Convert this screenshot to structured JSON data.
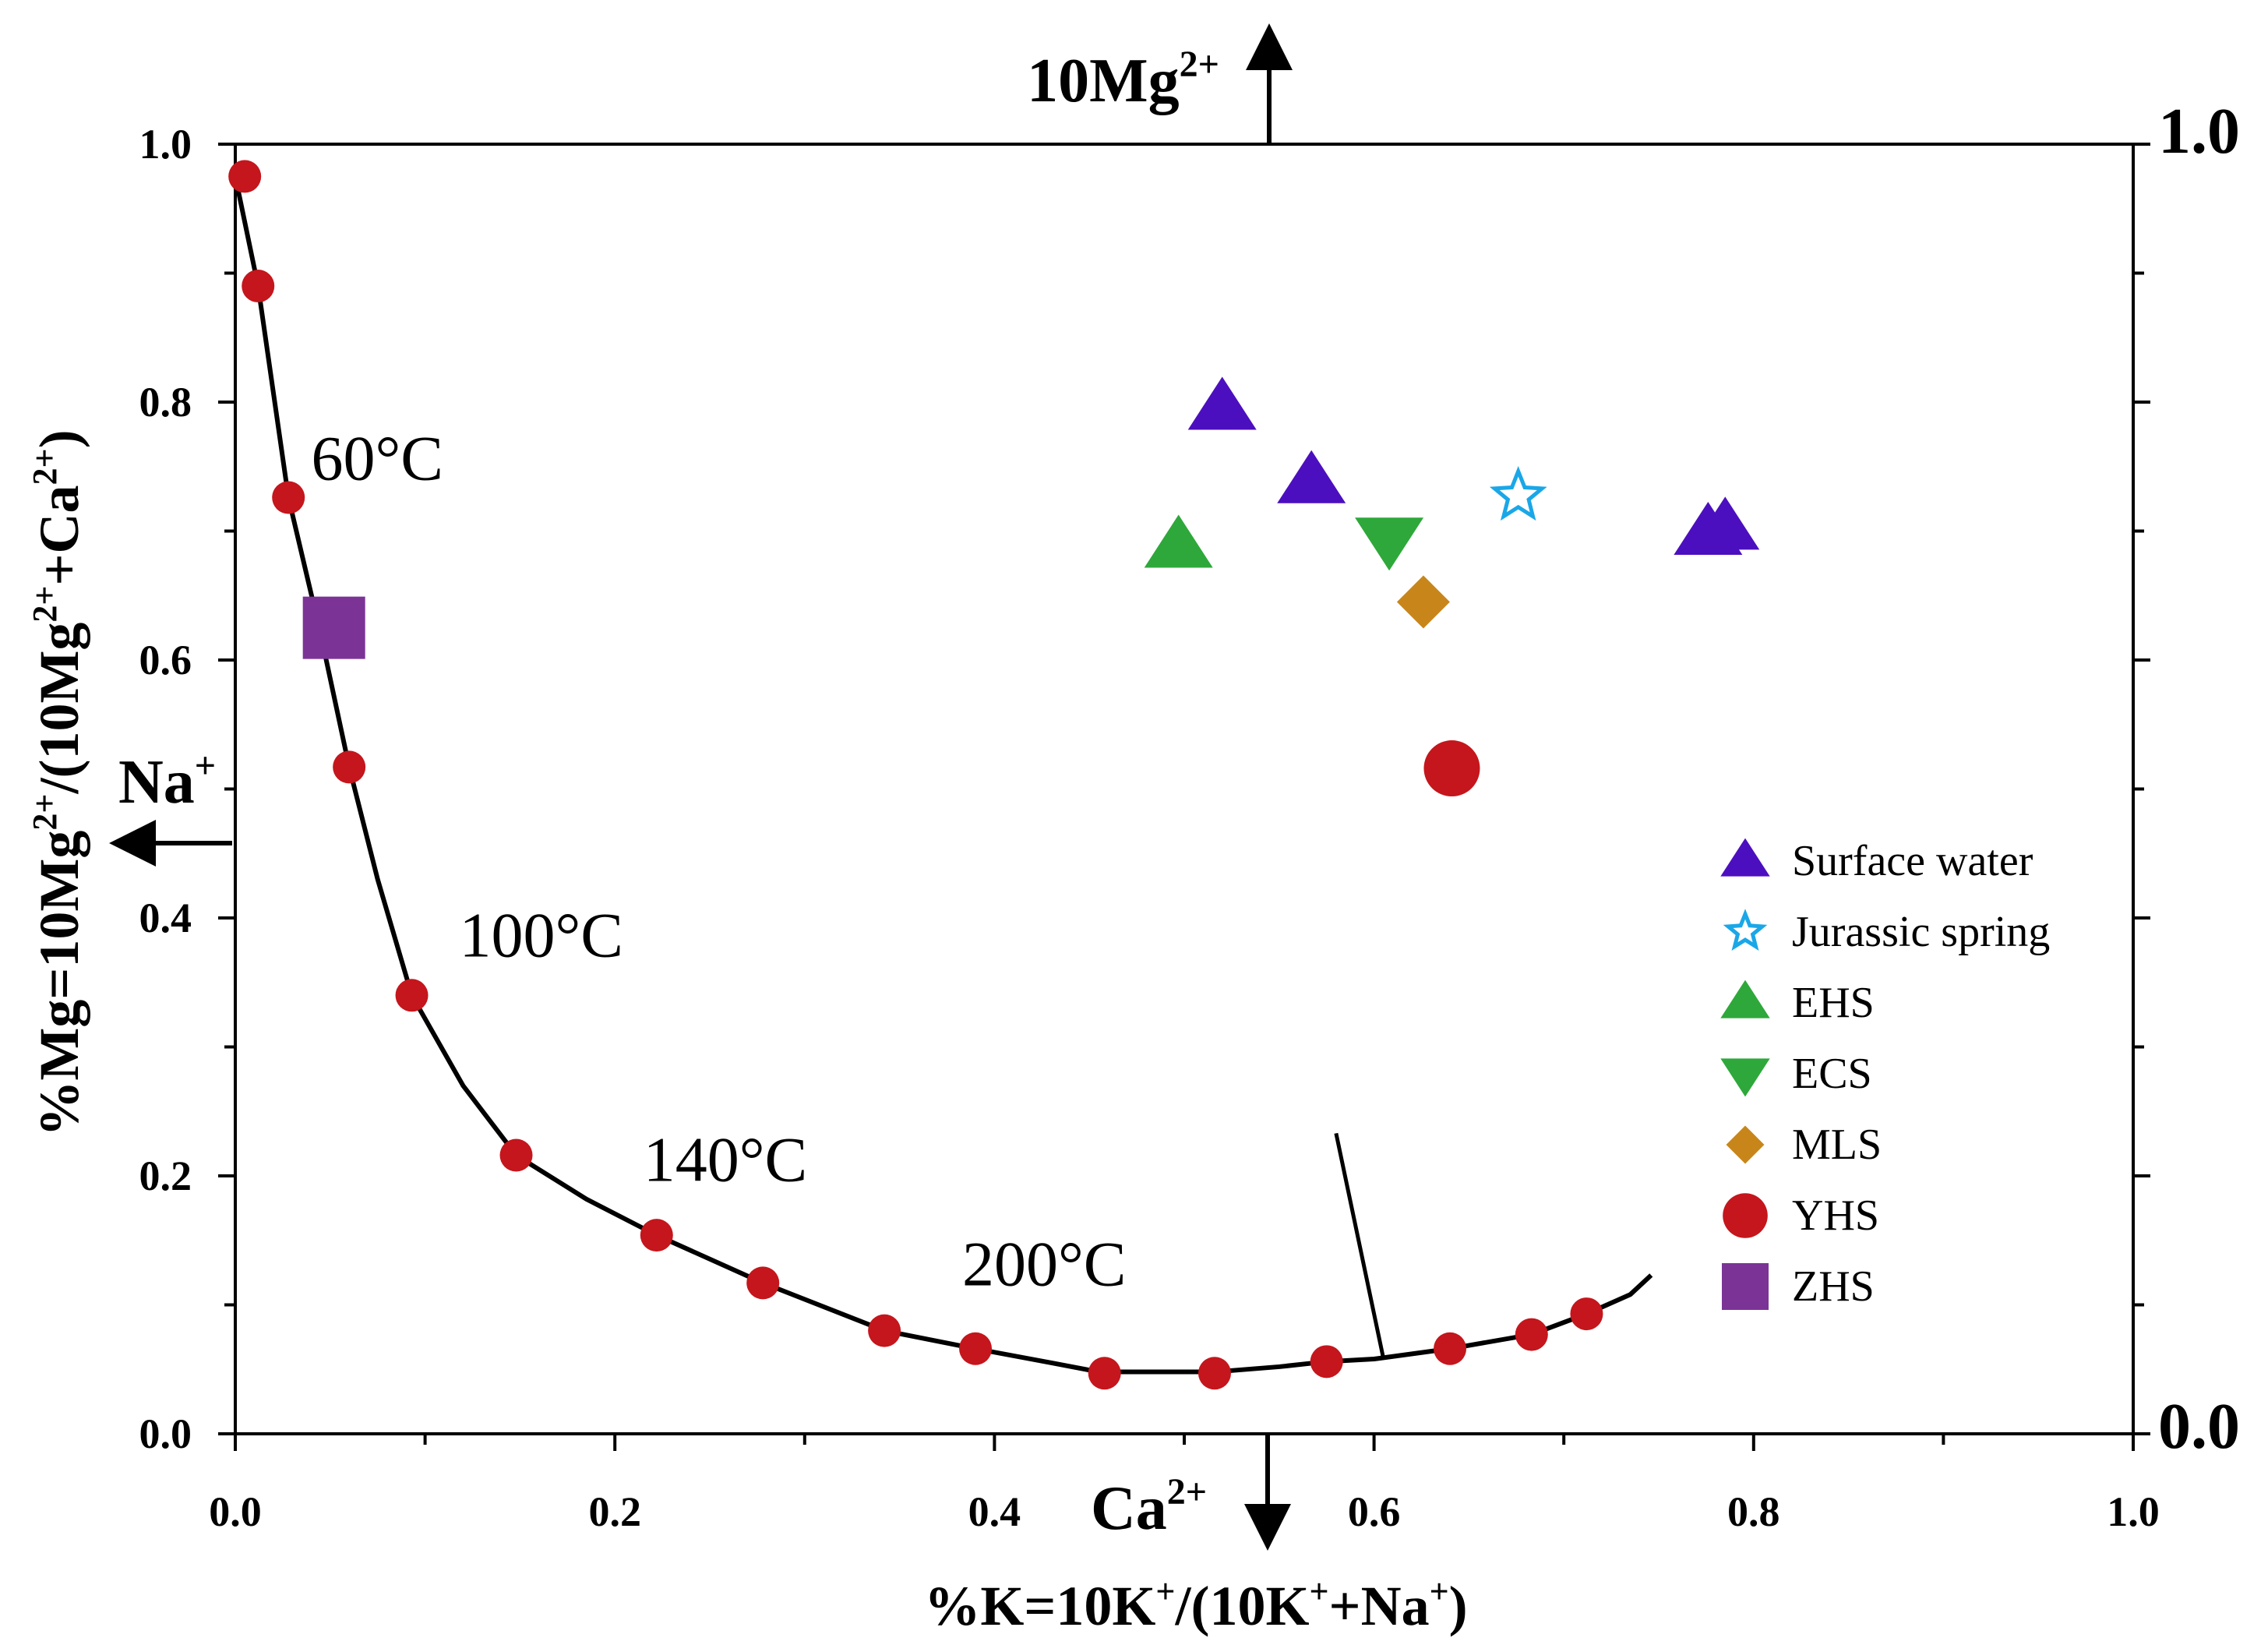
{
  "chart_data": {
    "type": "scatter",
    "xlabel_parts": [
      "%K=10K",
      "+",
      "/(10K",
      "+",
      "+Na",
      "+",
      ")"
    ],
    "ylabel_parts": [
      "%Mg=10Mg",
      "2+",
      "/(10Mg",
      "2+",
      "+Ca",
      "2+",
      ")"
    ],
    "xlim": [
      0.0,
      1.0
    ],
    "ylim": [
      0.0,
      1.0
    ],
    "x_ticks": [
      "0.0",
      "0.2",
      "0.4",
      "0.6",
      "0.8",
      "1.0"
    ],
    "y_ticks": [
      "0.0",
      "0.2",
      "0.4",
      "0.6",
      "0.8",
      "1.0"
    ],
    "right_axis_labels": {
      "top": "1.0",
      "bottom": "0.0"
    },
    "ion_labels": {
      "top": {
        "base": "10Mg",
        "sup": "2+"
      },
      "left": {
        "base": "Na",
        "sup": "+"
      },
      "bottom": {
        "base": "Ca",
        "sup": "2+"
      }
    },
    "equilibrium_curve": {
      "x": [
        0.0,
        0.012,
        0.028,
        0.045,
        0.06,
        0.075,
        0.093,
        0.12,
        0.148,
        0.185,
        0.222,
        0.278,
        0.342,
        0.39,
        0.43,
        0.455,
        0.5,
        0.516,
        0.55,
        0.575,
        0.6,
        0.64,
        0.683,
        0.712,
        0.735,
        0.746
      ],
      "y": [
        0.975,
        0.89,
        0.726,
        0.62,
        0.517,
        0.43,
        0.34,
        0.27,
        0.216,
        0.182,
        0.154,
        0.117,
        0.08,
        0.066,
        0.055,
        0.048,
        0.048,
        0.048,
        0.052,
        0.056,
        0.058,
        0.066,
        0.077,
        0.093,
        0.108,
        0.123
      ]
    },
    "curve_markers": {
      "x": [
        0.005,
        0.012,
        0.028,
        0.06,
        0.093,
        0.148,
        0.222,
        0.278,
        0.342,
        0.39,
        0.458,
        0.516,
        0.575,
        0.64,
        0.683,
        0.712
      ],
      "y": [
        0.975,
        0.89,
        0.726,
        0.517,
        0.34,
        0.216,
        0.154,
        0.117,
        0.08,
        0.066,
        0.047,
        0.047,
        0.056,
        0.066,
        0.077,
        0.093
      ]
    },
    "full_equilibrium_line": {
      "x": [
        0.58,
        0.605
      ],
      "y": [
        0.233,
        0.058
      ]
    },
    "temperature_labels": [
      {
        "text": "60°C",
        "x": 0.04,
        "y": 0.74
      },
      {
        "text": "100°C",
        "x": 0.118,
        "y": 0.37
      },
      {
        "text": "140°C",
        "x": 0.215,
        "y": 0.196
      },
      {
        "text": "200°C",
        "x": 0.383,
        "y": 0.115
      }
    ],
    "series": [
      {
        "name": "Surface water",
        "marker": "triangle-up",
        "color": "#4c0fbf",
        "points": [
          {
            "x": 0.52,
            "y": 0.795
          },
          {
            "x": 0.567,
            "y": 0.738
          },
          {
            "x": 0.776,
            "y": 0.698
          },
          {
            "x": 0.785,
            "y": 0.702
          }
        ]
      },
      {
        "name": "Jurassic spring",
        "marker": "star-open",
        "color": "#1aa7e8",
        "points": [
          {
            "x": 0.676,
            "y": 0.727
          }
        ]
      },
      {
        "name": "EHS",
        "marker": "triangle-up",
        "color": "#2ea83a",
        "points": [
          {
            "x": 0.497,
            "y": 0.688
          }
        ]
      },
      {
        "name": "ECS",
        "marker": "triangle-down",
        "color": "#2ea83a",
        "points": [
          {
            "x": 0.608,
            "y": 0.694
          }
        ]
      },
      {
        "name": "MLS",
        "marker": "diamond",
        "color": "#c8861a",
        "points": [
          {
            "x": 0.626,
            "y": 0.645
          }
        ]
      },
      {
        "name": "YHS",
        "marker": "circle-large",
        "color": "#c4161c",
        "points": [
          {
            "x": 0.641,
            "y": 0.516
          }
        ]
      },
      {
        "name": "ZHS",
        "marker": "square",
        "color": "#7b3496",
        "points": [
          {
            "x": 0.052,
            "y": 0.625
          }
        ]
      }
    ],
    "legend_position": "right-middle"
  }
}
